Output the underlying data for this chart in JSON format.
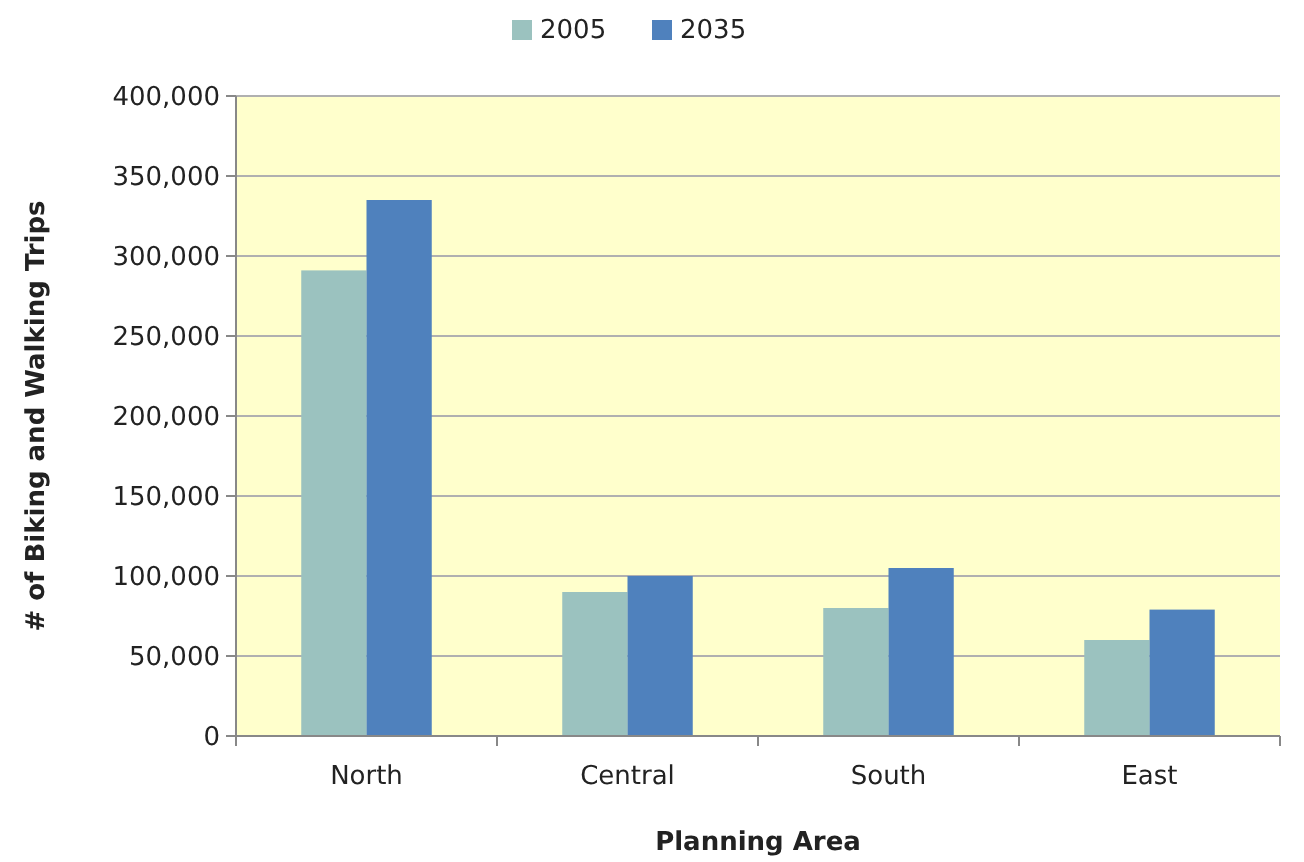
{
  "chart_data": {
    "type": "bar",
    "xlabel": "Planning Area",
    "ylabel": "# of Biking and Walking Trips",
    "categories": [
      "North",
      "Central",
      "South",
      "East"
    ],
    "series": [
      {
        "name": "2005",
        "color": "#9bc2bf",
        "values": [
          291000,
          90000,
          80000,
          60000
        ]
      },
      {
        "name": "2035",
        "color": "#4f81bd",
        "values": [
          335000,
          100000,
          105000,
          79000
        ]
      }
    ],
    "ylim": [
      0,
      400000
    ],
    "yticks": [
      {
        "value": 0,
        "label": "0"
      },
      {
        "value": 50000,
        "label": "50,000"
      },
      {
        "value": 100000,
        "label": "100,000"
      },
      {
        "value": 150000,
        "label": "150,000"
      },
      {
        "value": 200000,
        "label": "200,000"
      },
      {
        "value": 250000,
        "label": "250,000"
      },
      {
        "value": 300000,
        "label": "300,000"
      },
      {
        "value": 350000,
        "label": "350,000"
      },
      {
        "value": 400000,
        "label": "400,000"
      }
    ],
    "grid": "y",
    "legend": "top"
  }
}
